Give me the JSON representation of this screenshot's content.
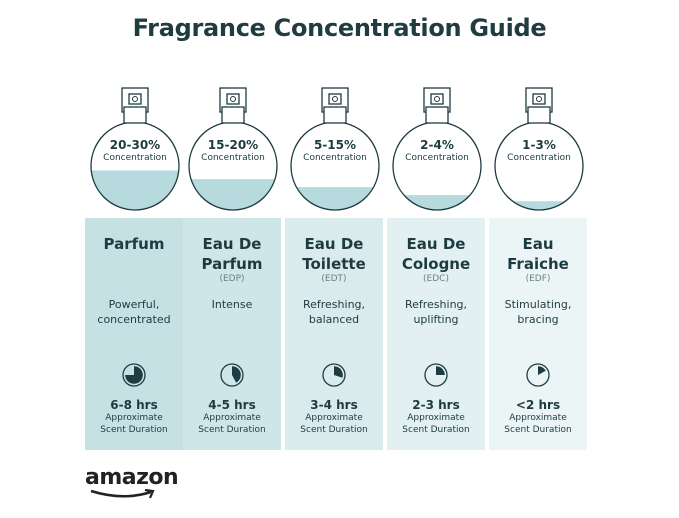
{
  "title": "Fragrance Concentration Guide",
  "concentration_label": "Concentration",
  "duration_label_1": "Approximate",
  "duration_label_2": "Scent Duration",
  "colors": {
    "text": "#1d3b40",
    "liquid": "#b7dade",
    "panel_left": "#c3e0e3",
    "panel_right": "#eef6f7"
  },
  "types": [
    {
      "name": "Parfum",
      "abbr": "",
      "pct": "20-30%",
      "fill": 0.45,
      "desc": "Powerful, concentrated",
      "hrs": "6-8 hrs",
      "clock": 0.75
    },
    {
      "name": "Eau De Parfum",
      "abbr": "(EDP)",
      "pct": "15-20%",
      "fill": 0.35,
      "desc": "Intense",
      "hrs": "4-5 hrs",
      "clock": 0.42
    },
    {
      "name": "Eau De Toilette",
      "abbr": "(EDT)",
      "pct": "5-15%",
      "fill": 0.26,
      "desc": "Refreshing, balanced",
      "hrs": "3-4 hrs",
      "clock": 0.3
    },
    {
      "name": "Eau De Cologne",
      "abbr": "(EDC)",
      "pct": "2-4%",
      "fill": 0.17,
      "desc": "Refreshing, uplifting",
      "hrs": "2-3 hrs",
      "clock": 0.25
    },
    {
      "name": "Eau Fraiche",
      "abbr": "(EDF)",
      "pct": "1-3%",
      "fill": 0.1,
      "desc": "Stimulating, bracing",
      "hrs": "<2 hrs",
      "clock": 0.17
    }
  ],
  "logo": "amazon"
}
